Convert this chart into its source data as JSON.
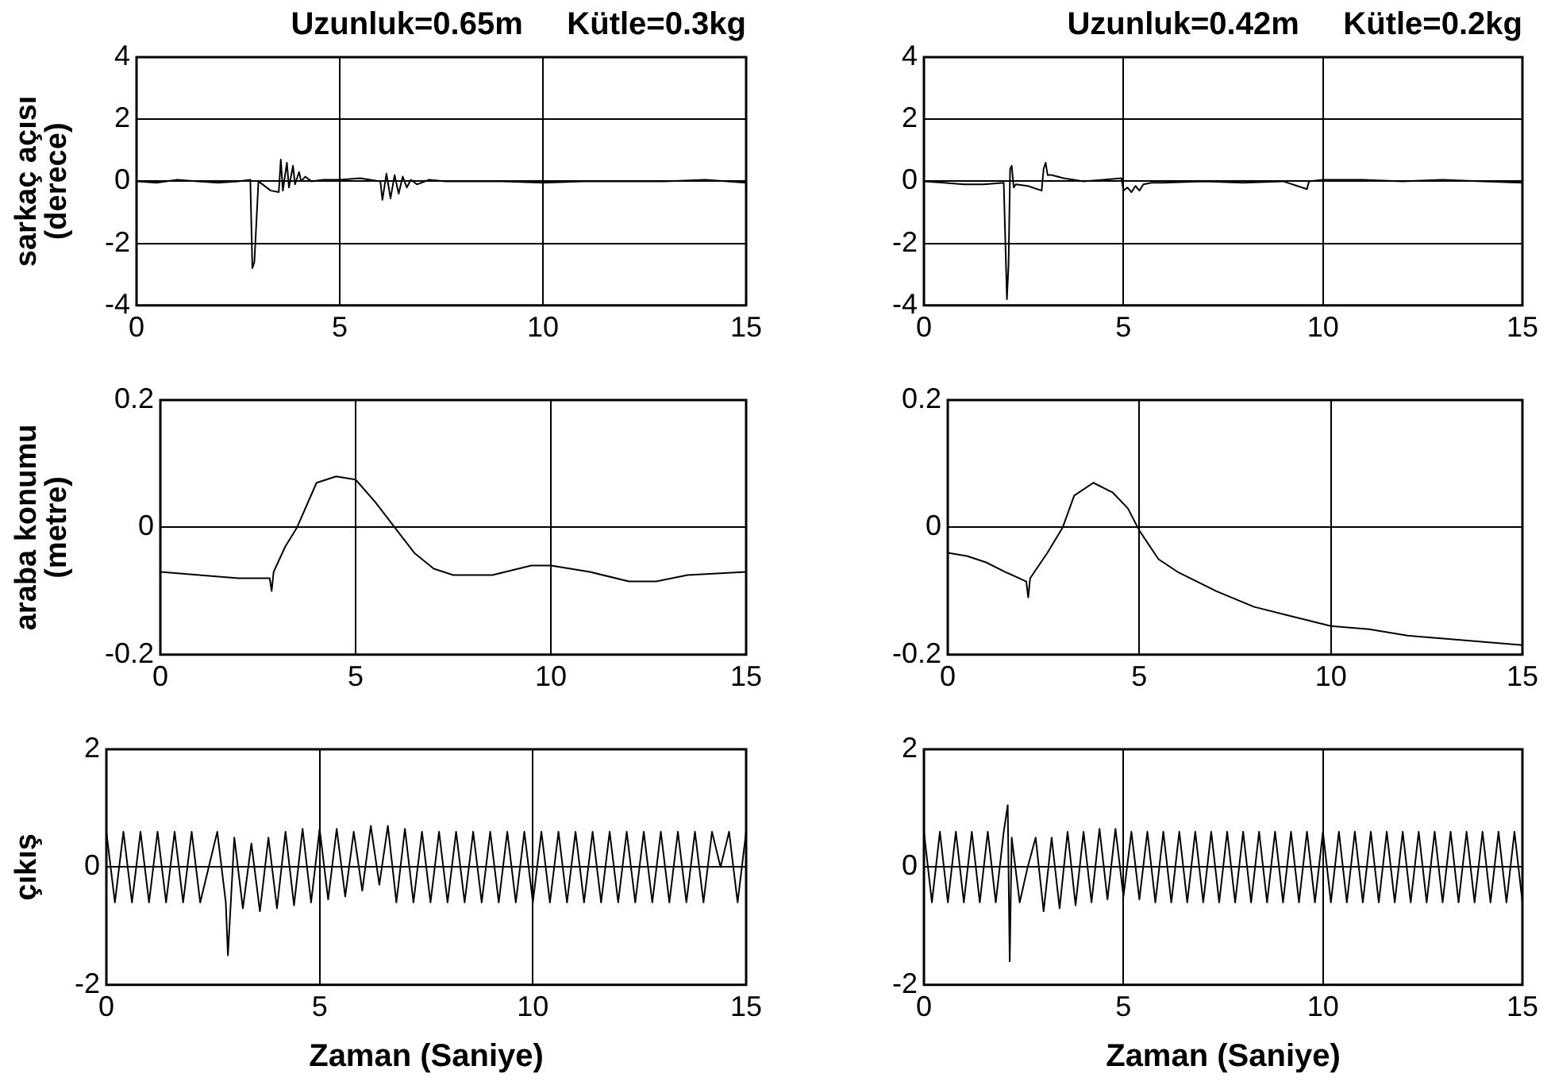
{
  "chart_data": [
    {
      "type": "line",
      "title": "Uzunluk=0.65m     Kütle=0.3kg",
      "ylabel": "sarkaç açısı\n(derece)",
      "xlim": [
        0,
        15
      ],
      "xticks": [
        0,
        5,
        10,
        15
      ],
      "ylim": [
        -4,
        4
      ],
      "yticks": [
        -4,
        -2,
        0,
        2,
        4
      ],
      "grid": true,
      "legend": false,
      "series": [
        {
          "color": "#000000",
          "x": [
            0,
            0.5,
            1,
            1.5,
            2,
            2.5,
            2.8,
            2.85,
            2.9,
            3.0,
            3.3,
            3.5,
            3.55,
            3.6,
            3.7,
            3.75,
            3.85,
            3.9,
            4.0,
            4.05,
            4.15,
            4.3,
            4.6,
            5,
            5.5,
            6,
            6.05,
            6.15,
            6.25,
            6.35,
            6.45,
            6.55,
            6.65,
            6.75,
            6.9,
            7.2,
            7.6,
            8,
            9,
            10,
            11,
            12,
            13,
            14,
            15
          ],
          "values": [
            0,
            -0.05,
            0.05,
            0,
            -0.05,
            0,
            0.05,
            -2.8,
            -2.6,
            0,
            -0.3,
            -0.35,
            0.7,
            -0.3,
            0.6,
            -0.2,
            0.5,
            -0.1,
            0.3,
            0,
            0.15,
            0,
            0.05,
            0.05,
            0.1,
            0,
            -0.6,
            0.25,
            -0.55,
            0.2,
            -0.4,
            0.15,
            -0.2,
            0.05,
            -0.1,
            0.05,
            0,
            0,
            0,
            -0.05,
            0,
            0,
            0,
            0.05,
            -0.05
          ]
        }
      ]
    },
    {
      "type": "line",
      "title": "Uzunluk=0.42m     Kütle=0.2kg",
      "xlim": [
        0,
        15
      ],
      "xticks": [
        0,
        5,
        10,
        15
      ],
      "ylim": [
        -4,
        4
      ],
      "yticks": [
        -4,
        -2,
        0,
        2,
        4
      ],
      "grid": true,
      "legend": false,
      "series": [
        {
          "color": "#000000",
          "x": [
            0,
            0.5,
            1,
            1.5,
            2.0,
            2.08,
            2.12,
            2.16,
            2.2,
            2.25,
            2.3,
            2.6,
            2.95,
            3.0,
            3.05,
            3.1,
            3.2,
            3.5,
            4,
            4.5,
            4.95,
            5.0,
            5.1,
            5.2,
            5.3,
            5.4,
            5.5,
            5.7,
            6,
            7,
            8,
            9,
            9.6,
            9.65,
            10,
            11,
            12,
            13,
            14,
            15
          ],
          "values": [
            0,
            -0.05,
            -0.1,
            -0.1,
            -0.05,
            -3.8,
            -2.7,
            0.4,
            0.5,
            -0.2,
            -0.1,
            -0.15,
            -0.3,
            0.4,
            0.6,
            0.2,
            0.2,
            0.1,
            0,
            0.05,
            0.1,
            -0.3,
            -0.2,
            -0.35,
            -0.15,
            -0.3,
            -0.1,
            -0.05,
            -0.05,
            0,
            -0.05,
            0,
            -0.25,
            0,
            0.05,
            0.05,
            0,
            0.05,
            0,
            -0.05
          ]
        }
      ]
    },
    {
      "type": "line",
      "ylabel": "araba konumu\n(metre)",
      "xlim": [
        0,
        15
      ],
      "xticks": [
        0,
        5,
        10,
        15
      ],
      "ylim": [
        -0.2,
        0.2
      ],
      "yticks": [
        -0.2,
        0,
        0.2
      ],
      "grid": true,
      "legend": false,
      "series": [
        {
          "color": "#000000",
          "x": [
            0,
            1,
            2,
            2.8,
            2.85,
            2.9,
            3.2,
            3.5,
            4,
            4.5,
            5,
            5.5,
            6,
            6.5,
            7,
            7.5,
            8.5,
            9.5,
            10,
            11,
            12,
            12.7,
            13.5,
            15
          ],
          "values": [
            -0.07,
            -0.075,
            -0.08,
            -0.08,
            -0.1,
            -0.07,
            -0.03,
            0,
            0.07,
            0.08,
            0.075,
            0.04,
            0,
            -0.04,
            -0.065,
            -0.075,
            -0.075,
            -0.06,
            -0.06,
            -0.07,
            -0.085,
            -0.085,
            -0.075,
            -0.07
          ]
        }
      ]
    },
    {
      "type": "line",
      "xlim": [
        0,
        15
      ],
      "xticks": [
        0,
        5,
        10,
        15
      ],
      "ylim": [
        -0.2,
        0.2
      ],
      "yticks": [
        -0.2,
        0,
        0.2
      ],
      "grid": true,
      "legend": false,
      "series": [
        {
          "color": "#000000",
          "x": [
            0,
            0.5,
            1,
            1.5,
            2.05,
            2.1,
            2.15,
            2.6,
            3,
            3.3,
            3.8,
            4.3,
            4.7,
            5,
            5.5,
            6,
            7,
            8,
            9,
            10,
            11,
            12,
            13,
            14,
            15
          ],
          "values": [
            -0.04,
            -0.045,
            -0.055,
            -0.07,
            -0.085,
            -0.11,
            -0.08,
            -0.04,
            0,
            0.05,
            0.07,
            0.055,
            0.03,
            -0.005,
            -0.05,
            -0.07,
            -0.1,
            -0.125,
            -0.14,
            -0.155,
            -0.16,
            -0.17,
            -0.175,
            -0.18,
            -0.185
          ]
        }
      ]
    },
    {
      "type": "line",
      "ylabel": "çıkış",
      "xlabel": "Zaman (Saniye)",
      "xlim": [
        0,
        15
      ],
      "xticks": [
        0,
        5,
        10,
        15
      ],
      "ylim": [
        -2,
        2
      ],
      "yticks": [
        -2,
        0,
        2
      ],
      "grid": true,
      "legend": false,
      "series": [
        {
          "color": "#000000",
          "x": [
            0,
            0.2,
            0.4,
            0.6,
            0.8,
            1.0,
            1.2,
            1.4,
            1.6,
            1.8,
            2.0,
            2.2,
            2.4,
            2.6,
            2.8,
            2.85,
            3.0,
            3.2,
            3.4,
            3.6,
            3.8,
            4.0,
            4.2,
            4.4,
            4.6,
            4.8,
            5.0,
            5.2,
            5.4,
            5.6,
            5.8,
            6.0,
            6.2,
            6.4,
            6.6,
            6.8,
            7.0,
            7.2,
            7.4,
            7.6,
            7.8,
            8.0,
            8.2,
            8.4,
            8.6,
            8.8,
            9.0,
            9.2,
            9.4,
            9.6,
            9.8,
            10.0,
            10.2,
            10.4,
            10.6,
            10.8,
            11.0,
            11.2,
            11.4,
            11.6,
            11.8,
            12.0,
            12.2,
            12.4,
            12.6,
            12.8,
            13.0,
            13.2,
            13.4,
            13.6,
            13.8,
            14.0,
            14.2,
            14.4,
            14.6,
            14.8,
            15
          ],
          "values": [
            0.6,
            -0.6,
            0.6,
            -0.6,
            0.6,
            -0.6,
            0.6,
            -0.6,
            0.6,
            -0.6,
            0.6,
            -0.6,
            0,
            0.6,
            -0.6,
            -1.5,
            0.5,
            -0.7,
            0.4,
            -0.75,
            0.5,
            -0.7,
            0.6,
            -0.65,
            0.65,
            -0.6,
            0.65,
            -0.55,
            0.65,
            -0.5,
            0.6,
            -0.4,
            0.7,
            -0.3,
            0.7,
            -0.6,
            0.65,
            -0.6,
            0.6,
            -0.6,
            0.6,
            -0.6,
            0.6,
            -0.6,
            0.6,
            -0.6,
            0.6,
            -0.6,
            0.6,
            -0.6,
            0.6,
            -0.6,
            0.6,
            -0.6,
            0.6,
            -0.6,
            0.6,
            -0.6,
            0.6,
            -0.6,
            0.6,
            -0.6,
            0.6,
            -0.6,
            0.6,
            -0.6,
            0.6,
            -0.6,
            0.6,
            -0.6,
            0.6,
            -0.6,
            0.6,
            0,
            0.6,
            -0.6,
            0.6
          ]
        }
      ]
    },
    {
      "type": "line",
      "xlabel": "Zaman (Saniye)",
      "xlim": [
        0,
        15
      ],
      "xticks": [
        0,
        5,
        10,
        15
      ],
      "ylim": [
        -2,
        2
      ],
      "yticks": [
        -2,
        0,
        2
      ],
      "grid": true,
      "legend": false,
      "series": [
        {
          "color": "#000000",
          "x": [
            0,
            0.2,
            0.4,
            0.6,
            0.8,
            1.0,
            1.2,
            1.4,
            1.6,
            1.8,
            2.0,
            2.1,
            2.15,
            2.2,
            2.4,
            2.6,
            2.8,
            3.0,
            3.2,
            3.4,
            3.6,
            3.8,
            4.0,
            4.2,
            4.4,
            4.6,
            4.8,
            5.0,
            5.2,
            5.4,
            5.6,
            5.8,
            6.0,
            6.2,
            6.4,
            6.6,
            6.8,
            7.0,
            7.2,
            7.4,
            7.6,
            7.8,
            8.0,
            8.2,
            8.4,
            8.6,
            8.8,
            9.0,
            9.2,
            9.4,
            9.6,
            9.8,
            10.0,
            10.2,
            10.4,
            10.6,
            10.8,
            11.0,
            11.2,
            11.4,
            11.6,
            11.8,
            12.0,
            12.2,
            12.4,
            12.6,
            12.8,
            13.0,
            13.2,
            13.4,
            13.6,
            13.8,
            14.0,
            14.2,
            14.4,
            14.6,
            14.8,
            15
          ],
          "values": [
            0.6,
            -0.6,
            0.6,
            -0.6,
            0.6,
            -0.6,
            0.6,
            -0.6,
            0.6,
            -0.6,
            0.6,
            1.05,
            -1.6,
            0.5,
            -0.6,
            0,
            0.5,
            -0.75,
            0.5,
            -0.7,
            0.6,
            -0.65,
            0.6,
            -0.6,
            0.65,
            -0.55,
            0.65,
            -0.5,
            0.6,
            -0.55,
            0.6,
            -0.6,
            0.6,
            -0.6,
            0.6,
            -0.6,
            0.6,
            -0.6,
            0.6,
            -0.6,
            0.6,
            -0.6,
            0.6,
            -0.6,
            0.6,
            -0.6,
            0.6,
            -0.6,
            0.6,
            -0.6,
            0.6,
            -0.6,
            0.6,
            -0.6,
            0.6,
            -0.6,
            0.6,
            -0.6,
            0.6,
            -0.6,
            0.6,
            -0.6,
            0.6,
            -0.6,
            0.6,
            -0.6,
            0.6,
            -0.6,
            0.6,
            -0.6,
            0.6,
            -0.6,
            0.6,
            -0.6,
            0.6,
            -0.6,
            0.6,
            -0.6
          ]
        }
      ]
    }
  ]
}
